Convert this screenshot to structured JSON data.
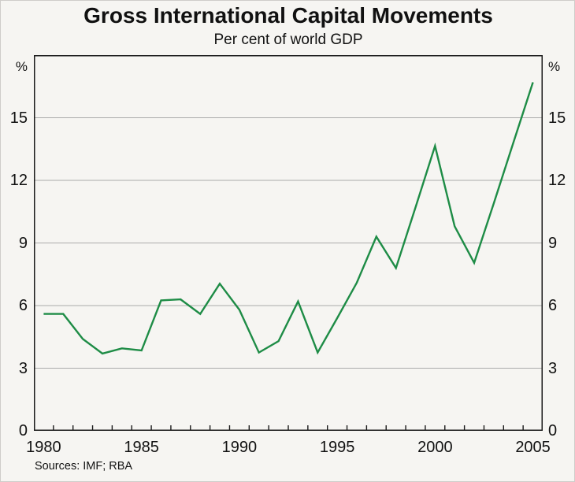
{
  "header": {
    "title": "Gross International Capital Movements",
    "subtitle": "Per cent of world GDP"
  },
  "axes": {
    "left_unit": "%",
    "right_unit": "%"
  },
  "footer": {
    "sources": "Sources: IMF; RBA"
  },
  "chart_data": {
    "type": "line",
    "title": "Gross International Capital Movements",
    "subtitle": "Per cent of world GDP",
    "xlabel": "",
    "ylabel": "%",
    "x": [
      1980,
      1981,
      1982,
      1983,
      1984,
      1985,
      1986,
      1987,
      1988,
      1989,
      1990,
      1991,
      1992,
      1993,
      1994,
      1995,
      1996,
      1997,
      1998,
      1999,
      2000,
      2001,
      2002,
      2003,
      2004,
      2005
    ],
    "series": [
      {
        "name": "Gross international capital movements",
        "color": "#1e8c46",
        "values": [
          5.6,
          5.6,
          4.4,
          3.7,
          3.95,
          3.85,
          6.25,
          6.3,
          5.6,
          7.05,
          5.8,
          3.75,
          4.3,
          6.2,
          3.75,
          5.4,
          7.1,
          9.3,
          7.8,
          10.7,
          13.65,
          9.8,
          8.05,
          10.9,
          13.8,
          16.7
        ]
      }
    ],
    "xlim": [
      1979.5,
      2005.5
    ],
    "ylim": [
      0,
      18
    ],
    "yticks": [
      0,
      3,
      6,
      9,
      12,
      15
    ],
    "gridline_values": [
      3,
      6,
      9,
      12,
      15
    ],
    "xtick_label_years": [
      1980,
      1985,
      1990,
      1995,
      2000,
      2005
    ],
    "minor_tick_step_years": 1,
    "grid": true,
    "legend_position": "none",
    "grid_color": "#ababab",
    "axis_color": "#1a1a1a",
    "background_color": "#f6f5f2"
  }
}
